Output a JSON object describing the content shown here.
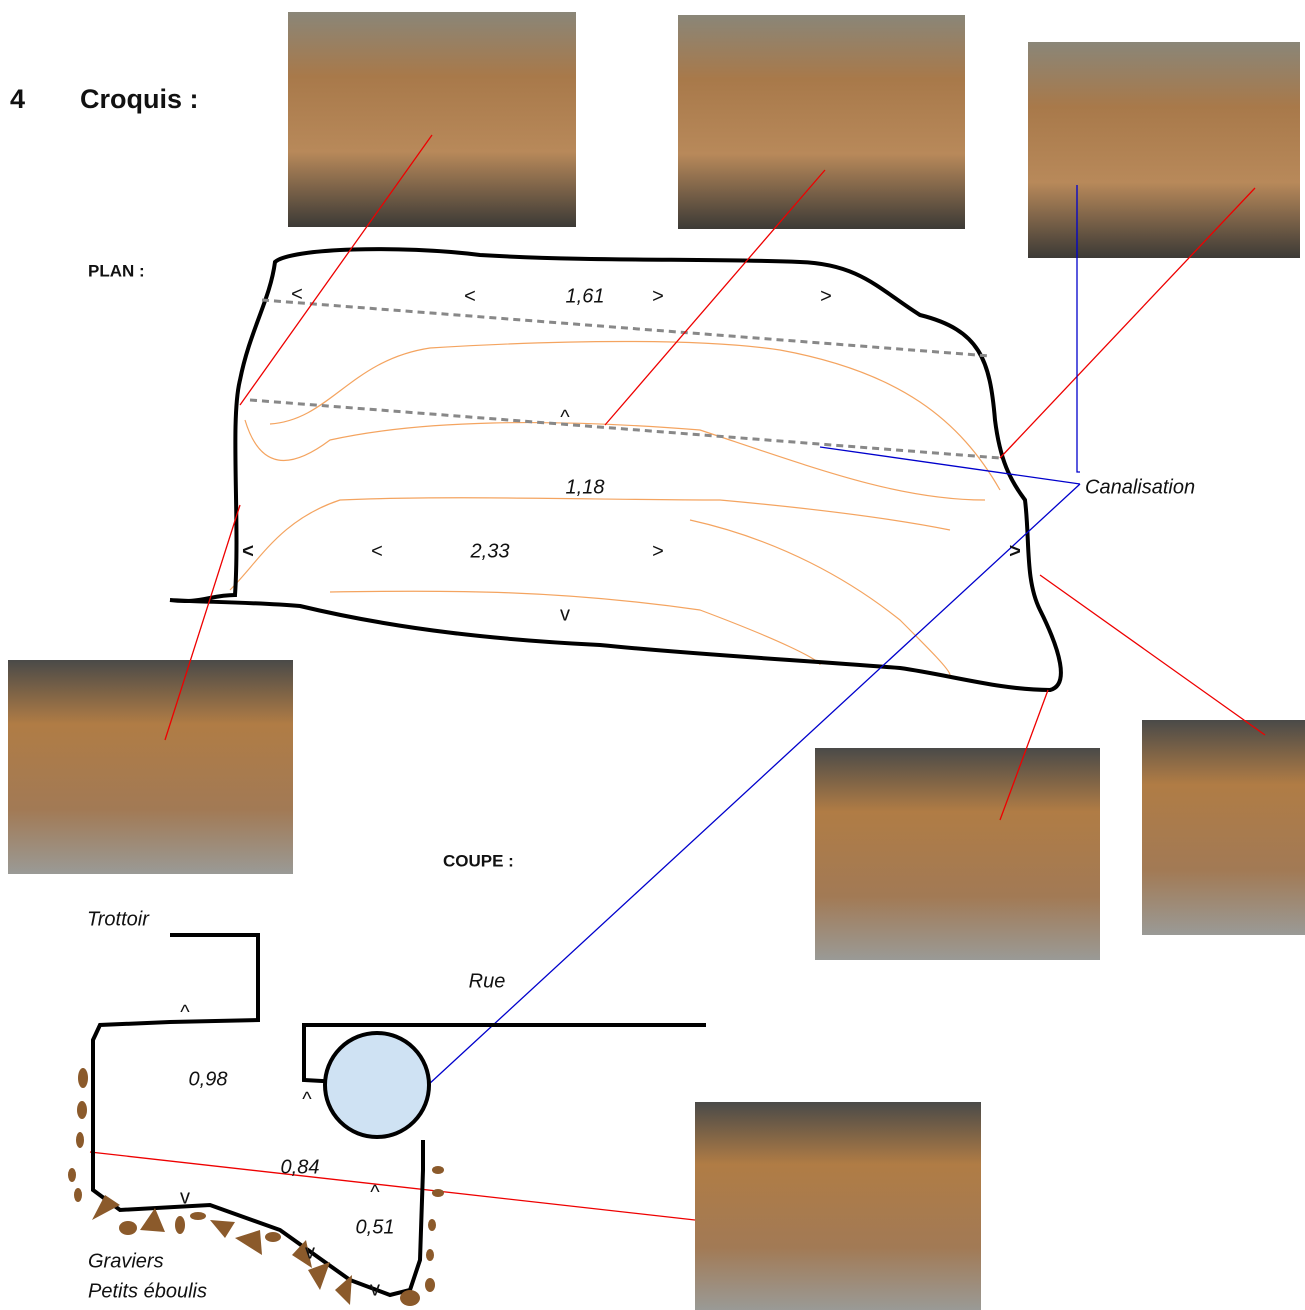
{
  "header": {
    "number": "4",
    "title": "Croquis :"
  },
  "plan": {
    "label": "PLAN :",
    "annotations": [
      "<",
      "<",
      "1,61",
      ">",
      ">",
      "^",
      "1,18",
      "<",
      "<",
      "2,33",
      ">",
      ">",
      "v"
    ],
    "pipe_label": "Canalisation"
  },
  "coupe": {
    "label": "COUPE :",
    "annotations": [
      "Trottoir",
      "Rue",
      "^",
      "0,98",
      "^",
      "0,84",
      "v",
      "^",
      "0,51",
      "v",
      "v"
    ],
    "legend": [
      "Graviers",
      "Petits éboulis"
    ]
  }
}
